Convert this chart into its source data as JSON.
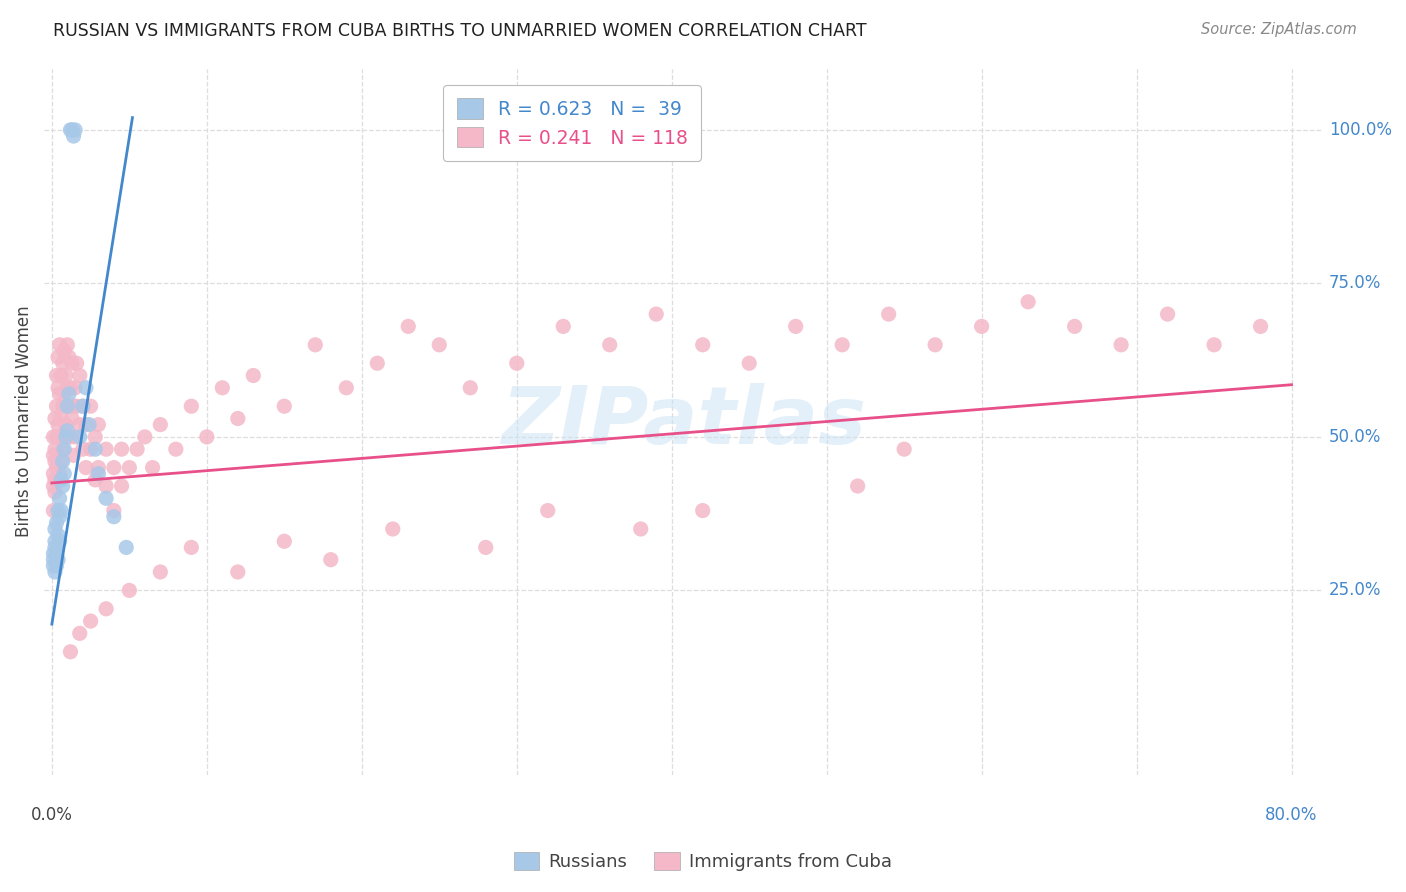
{
  "title": "RUSSIAN VS IMMIGRANTS FROM CUBA BIRTHS TO UNMARRIED WOMEN CORRELATION CHART",
  "source": "Source: ZipAtlas.com",
  "ylabel": "Births to Unmarried Women",
  "watermark": "ZIPatlas",
  "russian_color": "#a8c8e8",
  "cuba_color": "#f4b8c8",
  "russian_line_color": "#4488cc",
  "cuba_line_color": "#e8508a",
  "background_color": "#ffffff",
  "grid_color": "#dddddd",
  "ytick_labels": [
    "100.0%",
    "75.0%",
    "50.0%",
    "25.0%"
  ],
  "ytick_values": [
    1.0,
    0.75,
    0.5,
    0.25
  ],
  "russian_points": {
    "x": [
      0.001,
      0.001,
      0.001,
      0.002,
      0.002,
      0.002,
      0.002,
      0.003,
      0.003,
      0.003,
      0.004,
      0.004,
      0.004,
      0.005,
      0.005,
      0.005,
      0.006,
      0.006,
      0.007,
      0.007,
      0.008,
      0.008,
      0.009,
      0.01,
      0.01,
      0.011,
      0.012,
      0.013,
      0.014,
      0.015,
      0.018,
      0.02,
      0.022,
      0.024,
      0.028,
      0.03,
      0.035,
      0.04,
      0.048
    ],
    "y": [
      0.3,
      0.29,
      0.31,
      0.32,
      0.28,
      0.35,
      0.33,
      0.36,
      0.31,
      0.29,
      0.38,
      0.34,
      0.3,
      0.4,
      0.37,
      0.33,
      0.43,
      0.38,
      0.46,
      0.42,
      0.48,
      0.44,
      0.5,
      0.55,
      0.51,
      0.57,
      1.0,
      1.0,
      0.99,
      1.0,
      0.5,
      0.55,
      0.58,
      0.52,
      0.48,
      0.44,
      0.4,
      0.37,
      0.32
    ]
  },
  "cuba_points": {
    "x": [
      0.001,
      0.001,
      0.001,
      0.001,
      0.001,
      0.002,
      0.002,
      0.002,
      0.002,
      0.002,
      0.003,
      0.003,
      0.003,
      0.003,
      0.004,
      0.004,
      0.004,
      0.004,
      0.005,
      0.005,
      0.005,
      0.005,
      0.006,
      0.006,
      0.006,
      0.007,
      0.007,
      0.007,
      0.008,
      0.008,
      0.008,
      0.009,
      0.009,
      0.01,
      0.01,
      0.01,
      0.011,
      0.011,
      0.012,
      0.012,
      0.013,
      0.013,
      0.014,
      0.014,
      0.015,
      0.015,
      0.016,
      0.016,
      0.018,
      0.018,
      0.02,
      0.02,
      0.022,
      0.022,
      0.025,
      0.025,
      0.028,
      0.028,
      0.03,
      0.03,
      0.035,
      0.035,
      0.04,
      0.04,
      0.045,
      0.045,
      0.05,
      0.055,
      0.06,
      0.065,
      0.07,
      0.08,
      0.09,
      0.1,
      0.11,
      0.12,
      0.13,
      0.15,
      0.17,
      0.19,
      0.21,
      0.23,
      0.25,
      0.27,
      0.3,
      0.33,
      0.36,
      0.39,
      0.42,
      0.45,
      0.48,
      0.51,
      0.54,
      0.57,
      0.6,
      0.63,
      0.66,
      0.69,
      0.72,
      0.75,
      0.78,
      0.55,
      0.52,
      0.42,
      0.38,
      0.32,
      0.28,
      0.22,
      0.18,
      0.15,
      0.12,
      0.09,
      0.07,
      0.05,
      0.035,
      0.025,
      0.018,
      0.012
    ],
    "y": [
      0.44,
      0.5,
      0.38,
      0.47,
      0.42,
      0.48,
      0.43,
      0.53,
      0.46,
      0.41,
      0.55,
      0.5,
      0.45,
      0.6,
      0.58,
      0.52,
      0.47,
      0.63,
      0.65,
      0.57,
      0.5,
      0.44,
      0.6,
      0.53,
      0.46,
      0.62,
      0.55,
      0.48,
      0.64,
      0.57,
      0.5,
      0.6,
      0.52,
      0.65,
      0.58,
      0.5,
      0.63,
      0.55,
      0.58,
      0.5,
      0.62,
      0.53,
      0.55,
      0.47,
      0.58,
      0.5,
      0.62,
      0.55,
      0.6,
      0.52,
      0.48,
      0.55,
      0.52,
      0.45,
      0.55,
      0.48,
      0.5,
      0.43,
      0.52,
      0.45,
      0.48,
      0.42,
      0.45,
      0.38,
      0.48,
      0.42,
      0.45,
      0.48,
      0.5,
      0.45,
      0.52,
      0.48,
      0.55,
      0.5,
      0.58,
      0.53,
      0.6,
      0.55,
      0.65,
      0.58,
      0.62,
      0.68,
      0.65,
      0.58,
      0.62,
      0.68,
      0.65,
      0.7,
      0.65,
      0.62,
      0.68,
      0.65,
      0.7,
      0.65,
      0.68,
      0.72,
      0.68,
      0.65,
      0.7,
      0.65,
      0.68,
      0.48,
      0.42,
      0.38,
      0.35,
      0.38,
      0.32,
      0.35,
      0.3,
      0.33,
      0.28,
      0.32,
      0.28,
      0.25,
      0.22,
      0.2,
      0.18,
      0.15
    ]
  },
  "russian_line": {
    "x0": 0.0,
    "y0": 0.195,
    "x1": 0.052,
    "y1": 1.02
  },
  "cuba_line": {
    "x0": 0.0,
    "y0": 0.425,
    "x1": 0.8,
    "y1": 0.585
  },
  "xlim": [
    -0.005,
    0.82
  ],
  "ylim": [
    -0.05,
    1.1
  ]
}
